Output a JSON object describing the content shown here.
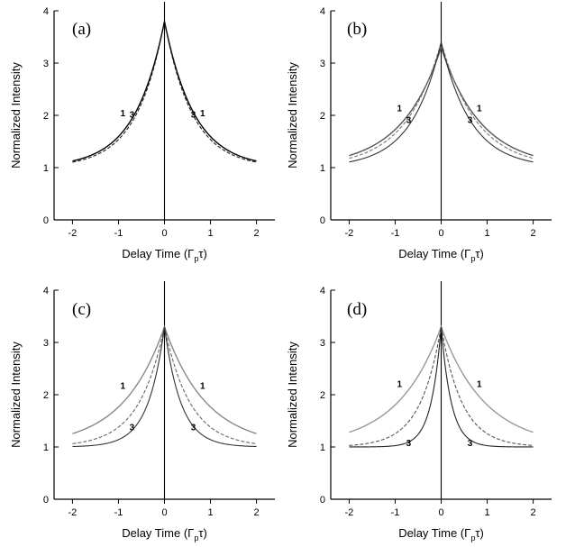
{
  "chart_data": [
    {
      "type": "line",
      "panel_label": "(a)",
      "ylabel": "Normalized Intensity",
      "xlabel": "Delay Time (Γ",
      "xlabel_sub": "p",
      "xlabel_end": "τ)",
      "xlim": [
        -2.4,
        2.4
      ],
      "ylim": [
        0,
        4
      ],
      "xticks": [
        -2,
        -1,
        0,
        1,
        2
      ],
      "yticks": [
        0,
        1,
        2,
        3,
        4
      ],
      "peak": 3.8,
      "series": [
        {
          "label": "1",
          "decay": 1.55,
          "color": "#000000",
          "peak": 3.8
        },
        {
          "label": "3",
          "decay": 1.65,
          "color": "#222222",
          "peak": 3.8
        }
      ]
    },
    {
      "type": "line",
      "panel_label": "(b)",
      "ylabel": "Normalized Intensity",
      "xlabel": "Delay Time (Γ",
      "xlabel_sub": "p",
      "xlabel_end": "τ)",
      "xlim": [
        -2.4,
        2.4
      ],
      "ylim": [
        0,
        4
      ],
      "xticks": [
        -2,
        -1,
        0,
        1,
        2
      ],
      "yticks": [
        0,
        1,
        2,
        3,
        4
      ],
      "series": [
        {
          "label": "1",
          "decay": 1.15,
          "color": "#555555",
          "peak": 3.3
        },
        {
          "label": "",
          "decay": 1.3,
          "color": "#777777",
          "peak": 3.4
        },
        {
          "label": "3",
          "decay": 1.55,
          "color": "#333333",
          "peak": 3.4
        }
      ]
    },
    {
      "type": "line",
      "panel_label": "(c)",
      "ylabel": "Normalized Intensity",
      "xlabel": "Delay Time (Γ",
      "xlabel_sub": "p",
      "xlabel_end": "τ)",
      "xlim": [
        -2.4,
        2.4
      ],
      "ylim": [
        0,
        4
      ],
      "xticks": [
        -2,
        -1,
        0,
        1,
        2
      ],
      "yticks": [
        0,
        1,
        2,
        3,
        4
      ],
      "series": [
        {
          "label": "1",
          "decay": 1.1,
          "color": "#888888",
          "peak": 3.3
        },
        {
          "label": "",
          "decay": 1.8,
          "color": "#666666",
          "peak": 3.3
        },
        {
          "label": "3",
          "decay": 2.8,
          "color": "#333333",
          "peak": 3.3
        }
      ]
    },
    {
      "type": "line",
      "panel_label": "(d)",
      "ylabel": "Normalized Intensity",
      "xlabel": "Delay Time (Γ",
      "xlabel_sub": "p",
      "xlabel_end": "τ)",
      "xlim": [
        -2.4,
        2.4
      ],
      "ylim": [
        0,
        4
      ],
      "xticks": [
        -2,
        -1,
        0,
        1,
        2
      ],
      "yticks": [
        0,
        1,
        2,
        3,
        4
      ],
      "series": [
        {
          "label": "1",
          "decay": 1.05,
          "color": "#999999",
          "peak": 3.3
        },
        {
          "label": "",
          "decay": 2.2,
          "color": "#555555",
          "peak": 3.3
        },
        {
          "label": "3",
          "decay": 4.5,
          "color": "#222222",
          "peak": 3.3
        }
      ]
    }
  ]
}
